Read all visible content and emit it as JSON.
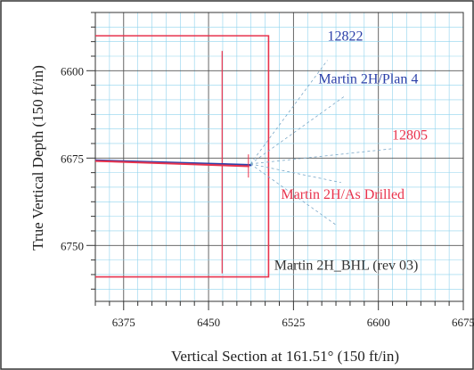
{
  "chart_data": {
    "type": "line",
    "xlabel": "Vertical Section at 161.51° (150 ft/in)",
    "ylabel": "True Vertical Depth (150 ft/in)",
    "xlim": [
      6350,
      6675
    ],
    "ylim": [
      6550,
      6798
    ],
    "y_inverted": true,
    "grid": true,
    "x_ticks": [
      6375,
      6450,
      6525,
      6600,
      6675
    ],
    "y_ticks": [
      6600,
      6675,
      6750
    ],
    "series": [
      {
        "name": "Martin 2H/Plan 4",
        "color": "#2a3fa8",
        "x": [
          6350,
          6488
        ],
        "y": [
          6677,
          6681
        ]
      },
      {
        "name": "Martin 2H/As Drilled",
        "color": "#e8334d",
        "x": [
          6350,
          6486
        ],
        "y": [
          6677.5,
          6682
        ]
      }
    ],
    "bhl_target": {
      "name": "Martin 2H_BHL (rev 03)",
      "color": "#e8334d",
      "x": [
        6350,
        6503,
        6503,
        6350
      ],
      "y": [
        6570,
        6570,
        6777,
        6777
      ]
    },
    "inner_line": {
      "color": "#e8334d",
      "x": 6462,
      "y": [
        6583,
        6774
      ]
    },
    "annotations": [
      {
        "text": "12822",
        "color": "#2a3fa8",
        "x": 6555,
        "y": 6574
      },
      {
        "text": "Martin 2H/Plan 4",
        "color": "#2a3fa8",
        "x": 6547,
        "y": 6611
      },
      {
        "text": "12805",
        "color": "#e8334d",
        "x": 6612,
        "y": 6659
      },
      {
        "text": "Martin 2H/As Drilled",
        "color": "#e8334d",
        "x": 6514,
        "y": 6710
      },
      {
        "text": "Martin 2H_BHL (rev 03)",
        "color": "#333333",
        "x": 6508,
        "y": 6771
      }
    ],
    "leaders": [
      {
        "from": [
          6487,
          6680
        ],
        "to": [
          6555,
          6591
        ]
      },
      {
        "from": [
          6487,
          6680
        ],
        "to": [
          6570,
          6622
        ]
      },
      {
        "from": [
          6487,
          6680
        ],
        "to": [
          6612,
          6667
        ]
      },
      {
        "from": [
          6487,
          6680
        ],
        "to": [
          6567,
          6696
        ]
      },
      {
        "from": [
          6487,
          6680
        ],
        "to": [
          6562,
          6732
        ]
      }
    ]
  }
}
